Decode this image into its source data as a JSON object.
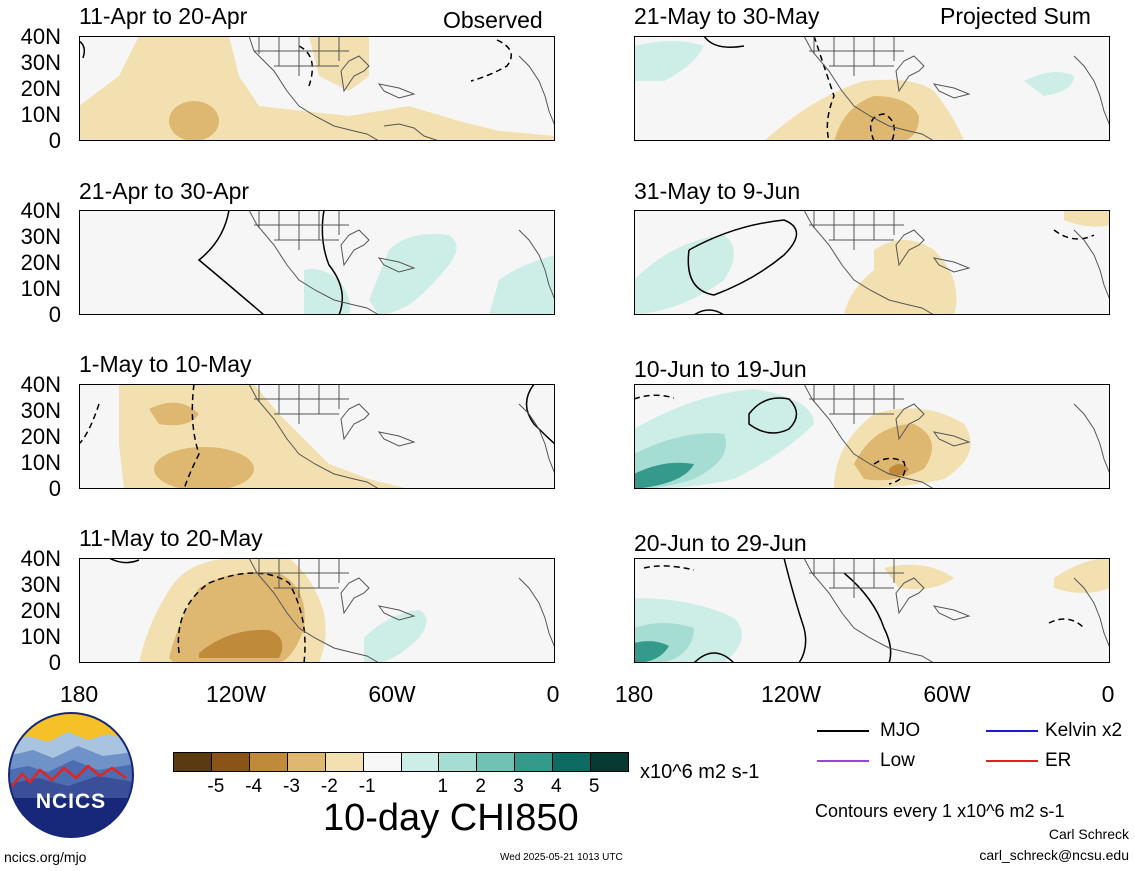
{
  "tags": {
    "observed": "Observed",
    "projected": "Projected Sum"
  },
  "lat_labels": [
    "40N",
    "30N",
    "20N",
    "10N",
    "0"
  ],
  "lon_labels": [
    "180",
    "120W",
    "60W",
    "0"
  ],
  "left_panels": [
    {
      "title": "11-Apr to 20-Apr"
    },
    {
      "title": "21-Apr to 30-Apr"
    },
    {
      "title": "1-May to 10-May"
    },
    {
      "title": "11-May to 20-May"
    }
  ],
  "right_panels": [
    {
      "title": "21-May to 30-May"
    },
    {
      "title": "31-May to 9-Jun"
    },
    {
      "title": "10-Jun to 19-Jun"
    },
    {
      "title": "20-Jun to 29-Jun"
    }
  ],
  "colorbar": {
    "colors": [
      "#5a3a10",
      "#8a5418",
      "#bf8a3a",
      "#deb870",
      "#f3e0b0",
      "#f7f7f7",
      "#cdeee6",
      "#a6ddd2",
      "#6fc2b4",
      "#35998c",
      "#0e6b62",
      "#073a33"
    ],
    "ticks": [
      "-5",
      "-4",
      "-3",
      "-2",
      "-1",
      "1",
      "2",
      "3",
      "4",
      "5"
    ],
    "units": "x10^6 m2 s-1",
    "title": "10-day CHI850"
  },
  "contour_legend": [
    {
      "label": "MJO",
      "color": "#000000"
    },
    {
      "label": "Kelvin x2",
      "color": "#1c1ccc"
    },
    {
      "label": "Low",
      "color": "#a040e0"
    },
    {
      "label": "ER",
      "color": "#e02020"
    }
  ],
  "contour_note": "Contours every 1 x10^6 m2 s-1",
  "author": "Carl Schreck",
  "email": "carl_schreck@ncsu.edu",
  "site": "ncics.org/mjo",
  "timestamp": "Wed 2025-05-21 1013 UTC",
  "logo": {
    "text": "NCICS"
  }
}
